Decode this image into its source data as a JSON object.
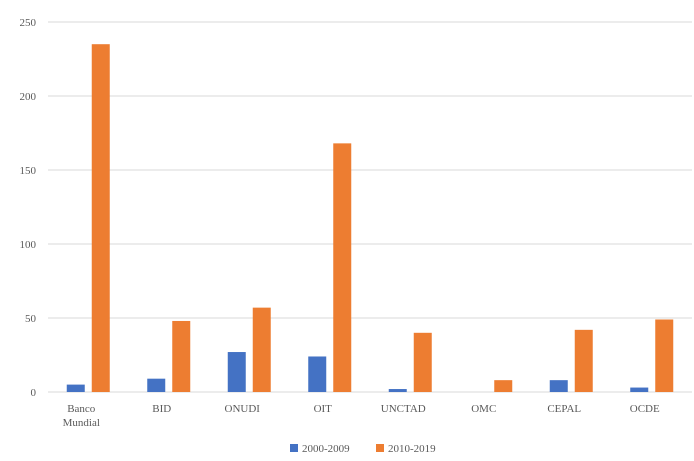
{
  "chart_data": {
    "type": "bar",
    "categories": [
      [
        "Banco",
        "Mundial"
      ],
      [
        "BID"
      ],
      [
        "ONUDI"
      ],
      [
        "OIT"
      ],
      [
        "UNCTAD"
      ],
      [
        "OMC"
      ],
      [
        "CEPAL"
      ],
      [
        "OCDE"
      ]
    ],
    "series": [
      {
        "name": "2000-2009",
        "color": "#4472C4",
        "values": [
          5,
          9,
          27,
          24,
          2,
          0,
          8,
          3
        ]
      },
      {
        "name": "2010-2019",
        "color": "#ED7D31",
        "values": [
          235,
          48,
          57,
          168,
          40,
          8,
          42,
          49
        ]
      }
    ],
    "yticks": [
      "0",
      "50",
      "100",
      "150",
      "200",
      "250"
    ],
    "ylim": [
      0,
      250
    ],
    "grid": true,
    "legend_position": "bottom",
    "title": "",
    "xlabel": "",
    "ylabel": ""
  }
}
